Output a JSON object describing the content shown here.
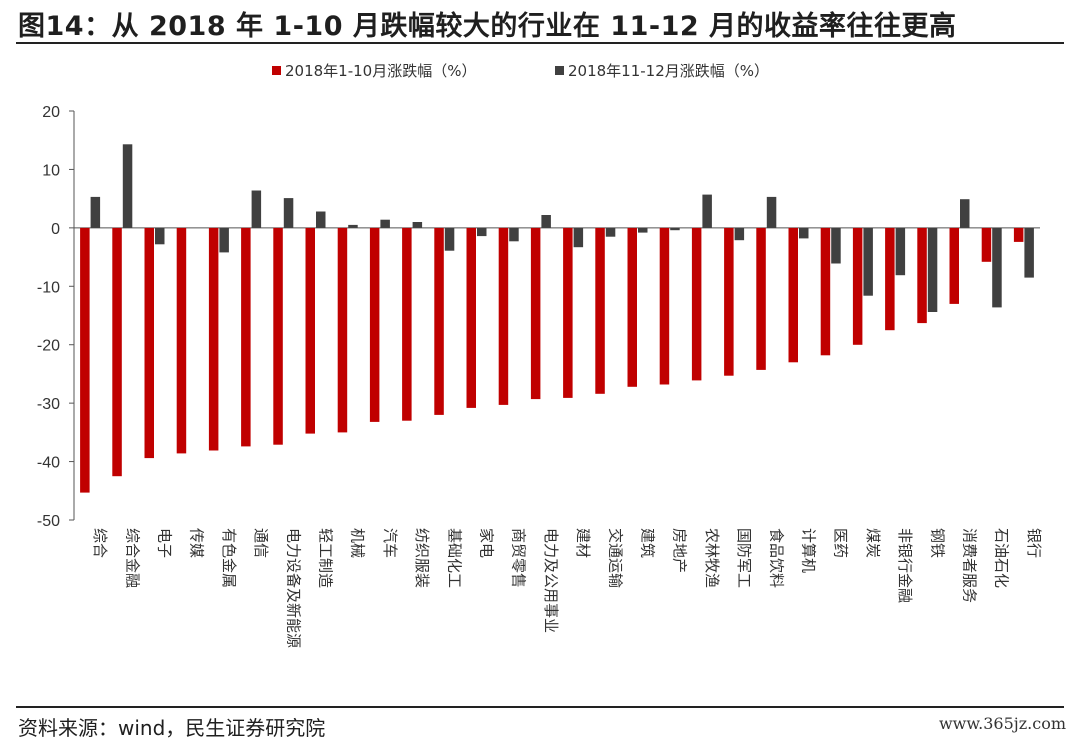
{
  "header": {
    "title": "图14：从 2018 年 1-10 月跌幅较大的行业在 11-12 月的收益率往往更高"
  },
  "footer": {
    "source": "资料来源：wind，民生证券研究院",
    "watermark": "www.365jz.com"
  },
  "chart_data": {
    "type": "bar",
    "legend_position": "top",
    "ylim": [
      -50,
      20
    ],
    "yticks": [
      20,
      10,
      0,
      -10,
      -20,
      -30,
      -40,
      -50
    ],
    "categories": [
      "综合",
      "综合金融",
      "电子",
      "传媒",
      "有色金属",
      "通信",
      "电力设备及新能源",
      "轻工制造",
      "机械",
      "汽车",
      "纺织服装",
      "基础化工",
      "家电",
      "商贸零售",
      "电力及公用事业",
      "建材",
      "交通运输",
      "建筑",
      "房地产",
      "农林牧渔",
      "国防军工",
      "食品饮料",
      "计算机",
      "医药",
      "煤炭",
      "非银行金融",
      "钢铁",
      "消费者服务",
      "石油石化",
      "银行"
    ],
    "series": [
      {
        "name": "2018年1-10月涨跌幅（%）",
        "color": "#c00000",
        "values": [
          -45.3,
          -42.5,
          -39.4,
          -38.6,
          -38.1,
          -37.4,
          -37.1,
          -35.2,
          -35.0,
          -33.2,
          -33.0,
          -32.0,
          -30.8,
          -30.3,
          -29.3,
          -29.1,
          -28.4,
          -27.2,
          -26.8,
          -26.1,
          -25.3,
          -24.3,
          -23.0,
          -21.8,
          -20.0,
          -17.5,
          -16.3,
          -13.0,
          -5.8,
          -2.4
        ]
      },
      {
        "name": "2018年11-12月涨跌幅（%）",
        "color": "#404040",
        "values": [
          5.3,
          14.3,
          -2.8,
          0,
          -4.2,
          6.4,
          5.1,
          2.8,
          0.5,
          1.4,
          1.0,
          -3.9,
          -1.4,
          -2.3,
          2.2,
          -3.3,
          -1.5,
          -0.8,
          -0.4,
          5.7,
          -2.1,
          5.3,
          -1.8,
          -6.1,
          -11.6,
          -8.1,
          -14.4,
          4.9,
          -13.6,
          -8.5
        ]
      }
    ]
  }
}
